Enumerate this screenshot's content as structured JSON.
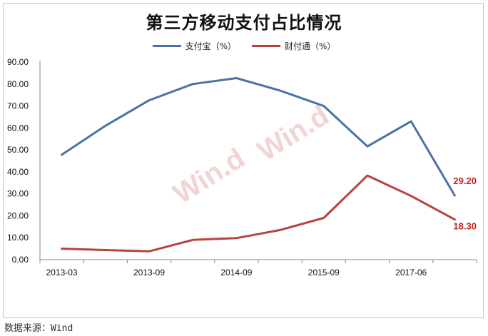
{
  "title": "第三方移动支付占比情况",
  "source": "数据来源：Wind",
  "watermark": [
    "Win.d",
    "Win.d"
  ],
  "colors": {
    "series_0": "#4a72a6",
    "series_1": "#b9423c",
    "label_red": "#c0241f",
    "axis": "#888888"
  },
  "chart_data": {
    "type": "line",
    "title": "第三方移动支付占比情况",
    "xlabel": "",
    "ylabel": "",
    "ylim": [
      0,
      90
    ],
    "yticks": [
      "0.00",
      "10.00",
      "20.00",
      "30.00",
      "40.00",
      "50.00",
      "60.00",
      "70.00",
      "80.00",
      "90.00"
    ],
    "x_tick_labels": [
      "2013-03",
      "2013-09",
      "2014-09",
      "2015-09",
      "2017-06"
    ],
    "x_tick_positions": [
      0,
      2,
      4,
      6,
      8
    ],
    "grid": false,
    "legend": "top-center",
    "series": [
      {
        "name": "支付宝（%）",
        "values": [
          47.8,
          61.0,
          72.6,
          80.0,
          82.7,
          77.0,
          70.0,
          51.6,
          63.0,
          29.2
        ],
        "end_label": "29.20"
      },
      {
        "name": "财付通（%）",
        "values": [
          5.0,
          4.4,
          3.8,
          9.0,
          9.8,
          13.5,
          19.0,
          38.3,
          29.0,
          18.3
        ],
        "end_label": "18.30"
      }
    ]
  }
}
